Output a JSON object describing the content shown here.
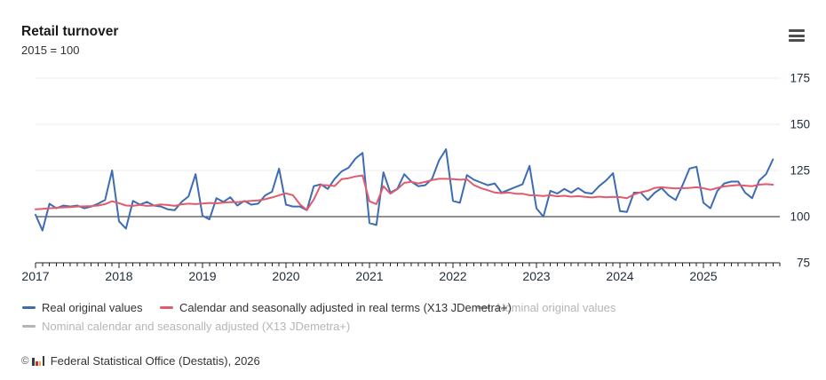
{
  "header": {
    "title": "Retail turnover",
    "subtitle": "2015 = 100"
  },
  "menu": {
    "icon": "hamburger-icon"
  },
  "chart_data": {
    "type": "line",
    "title": "Retail turnover",
    "subtitle": "2015 = 100",
    "x_unit": "month",
    "x_range": [
      "2017-01",
      "2025-11"
    ],
    "x_tick_labels": [
      "2017",
      "2018",
      "2019",
      "2020",
      "2021",
      "2022",
      "2023",
      "2024",
      "2025"
    ],
    "y_ticks": [
      75,
      100,
      125,
      150,
      175
    ],
    "ylim": [
      75,
      175
    ],
    "baseline": 100,
    "grid": "horizontal",
    "legend_position": "bottom",
    "series": [
      {
        "name": "Real original values",
        "color": "#3d6cb4",
        "visible": true,
        "values": [
          101,
          92.5,
          107,
          104.5,
          106,
          105.5,
          106,
          104.5,
          105.5,
          107,
          109,
          125,
          97.5,
          93.5,
          108.5,
          106.5,
          108,
          106,
          105.5,
          104,
          103.5,
          108,
          111,
          123,
          100.5,
          98.5,
          110,
          108,
          110.5,
          106,
          108.5,
          106.5,
          107,
          111.5,
          113.5,
          126,
          106.5,
          105.5,
          105.5,
          103.5,
          116.5,
          117.5,
          115,
          120.5,
          124.5,
          126.5,
          131.5,
          134.5,
          96.5,
          95.5,
          124,
          113,
          115,
          123,
          119,
          116.5,
          117,
          120.5,
          130.5,
          136.5,
          108.5,
          107.5,
          122.5,
          120,
          118.5,
          117,
          118,
          113,
          114.5,
          116,
          117.5,
          127.5,
          104.5,
          100,
          114,
          112.5,
          115,
          113,
          115.5,
          113,
          112.5,
          116.5,
          119.5,
          123.5,
          103,
          102.5,
          113,
          113,
          109,
          113,
          115.5,
          111.5,
          109,
          117,
          126,
          127,
          107.5,
          104.5,
          114,
          118,
          119,
          119,
          113,
          110,
          119.5,
          123,
          131
        ]
      },
      {
        "name": "Calendar and seasonally adjusted in real terms (X13 JDemetra+)",
        "color": "#e05c6c",
        "visible": true,
        "values": [
          104,
          104.2,
          104.5,
          104.8,
          105,
          105.2,
          105.5,
          105.6,
          105.7,
          106,
          106.8,
          108.3,
          107.3,
          106,
          105.8,
          106.4,
          105.8,
          106,
          106.6,
          106.3,
          105.8,
          106.7,
          107,
          106.8,
          107.1,
          107.4,
          107.2,
          107.6,
          107.9,
          107.8,
          108.2,
          108.5,
          108.8,
          109.4,
          110.4,
          111.6,
          112.6,
          111.6,
          106.7,
          103.6,
          109.3,
          117.2,
          116.9,
          116.6,
          120.3,
          120.8,
          121.8,
          122.3,
          108.3,
          106.8,
          116.5,
          112.4,
          114.8,
          118.3,
          118.8,
          118,
          118.8,
          119.8,
          120.5,
          120.5,
          120.3,
          120,
          120.2,
          117.1,
          115.5,
          114.3,
          113.1,
          112.7,
          113.1,
          112.4,
          112.4,
          111.6,
          111.5,
          111.2,
          111.6,
          111,
          111.3,
          110.8,
          111.1,
          110.7,
          110.4,
          110.8,
          110.5,
          110.7,
          110.6,
          110,
          112,
          113.2,
          114,
          115.6,
          115.9,
          115.6,
          115.3,
          115.4,
          115.6,
          115.9,
          115.4,
          114.5,
          115.6,
          116.4,
          116.8,
          117.1,
          116.8,
          116.5,
          117.3,
          117.6,
          117.3
        ]
      },
      {
        "name": "Nominal original values",
        "color": "#b5b5b5",
        "visible": false
      },
      {
        "name": "Nominal calendar and seasonally adjusted (X13 JDemetra+)",
        "color": "#b5b5b5",
        "visible": false
      }
    ]
  },
  "legend": {
    "items": [
      {
        "label": "Real original values",
        "color": "#3d6cb4",
        "enabled": true
      },
      {
        "label": "Calendar and seasonally adjusted in real terms (X13 JDemetra+)",
        "color": "#e05c6c",
        "enabled": true
      },
      {
        "label": "Nominal original values",
        "color": "#b5b5b5",
        "enabled": false
      },
      {
        "label": "Nominal calendar and seasonally adjusted (X13 JDemetra+)",
        "color": "#b5b5b5",
        "enabled": false
      }
    ]
  },
  "footer": {
    "copyright": "©",
    "source_icon": "destatis-logo-icon",
    "source": "Federal Statistical Office (Destatis), 2026"
  }
}
